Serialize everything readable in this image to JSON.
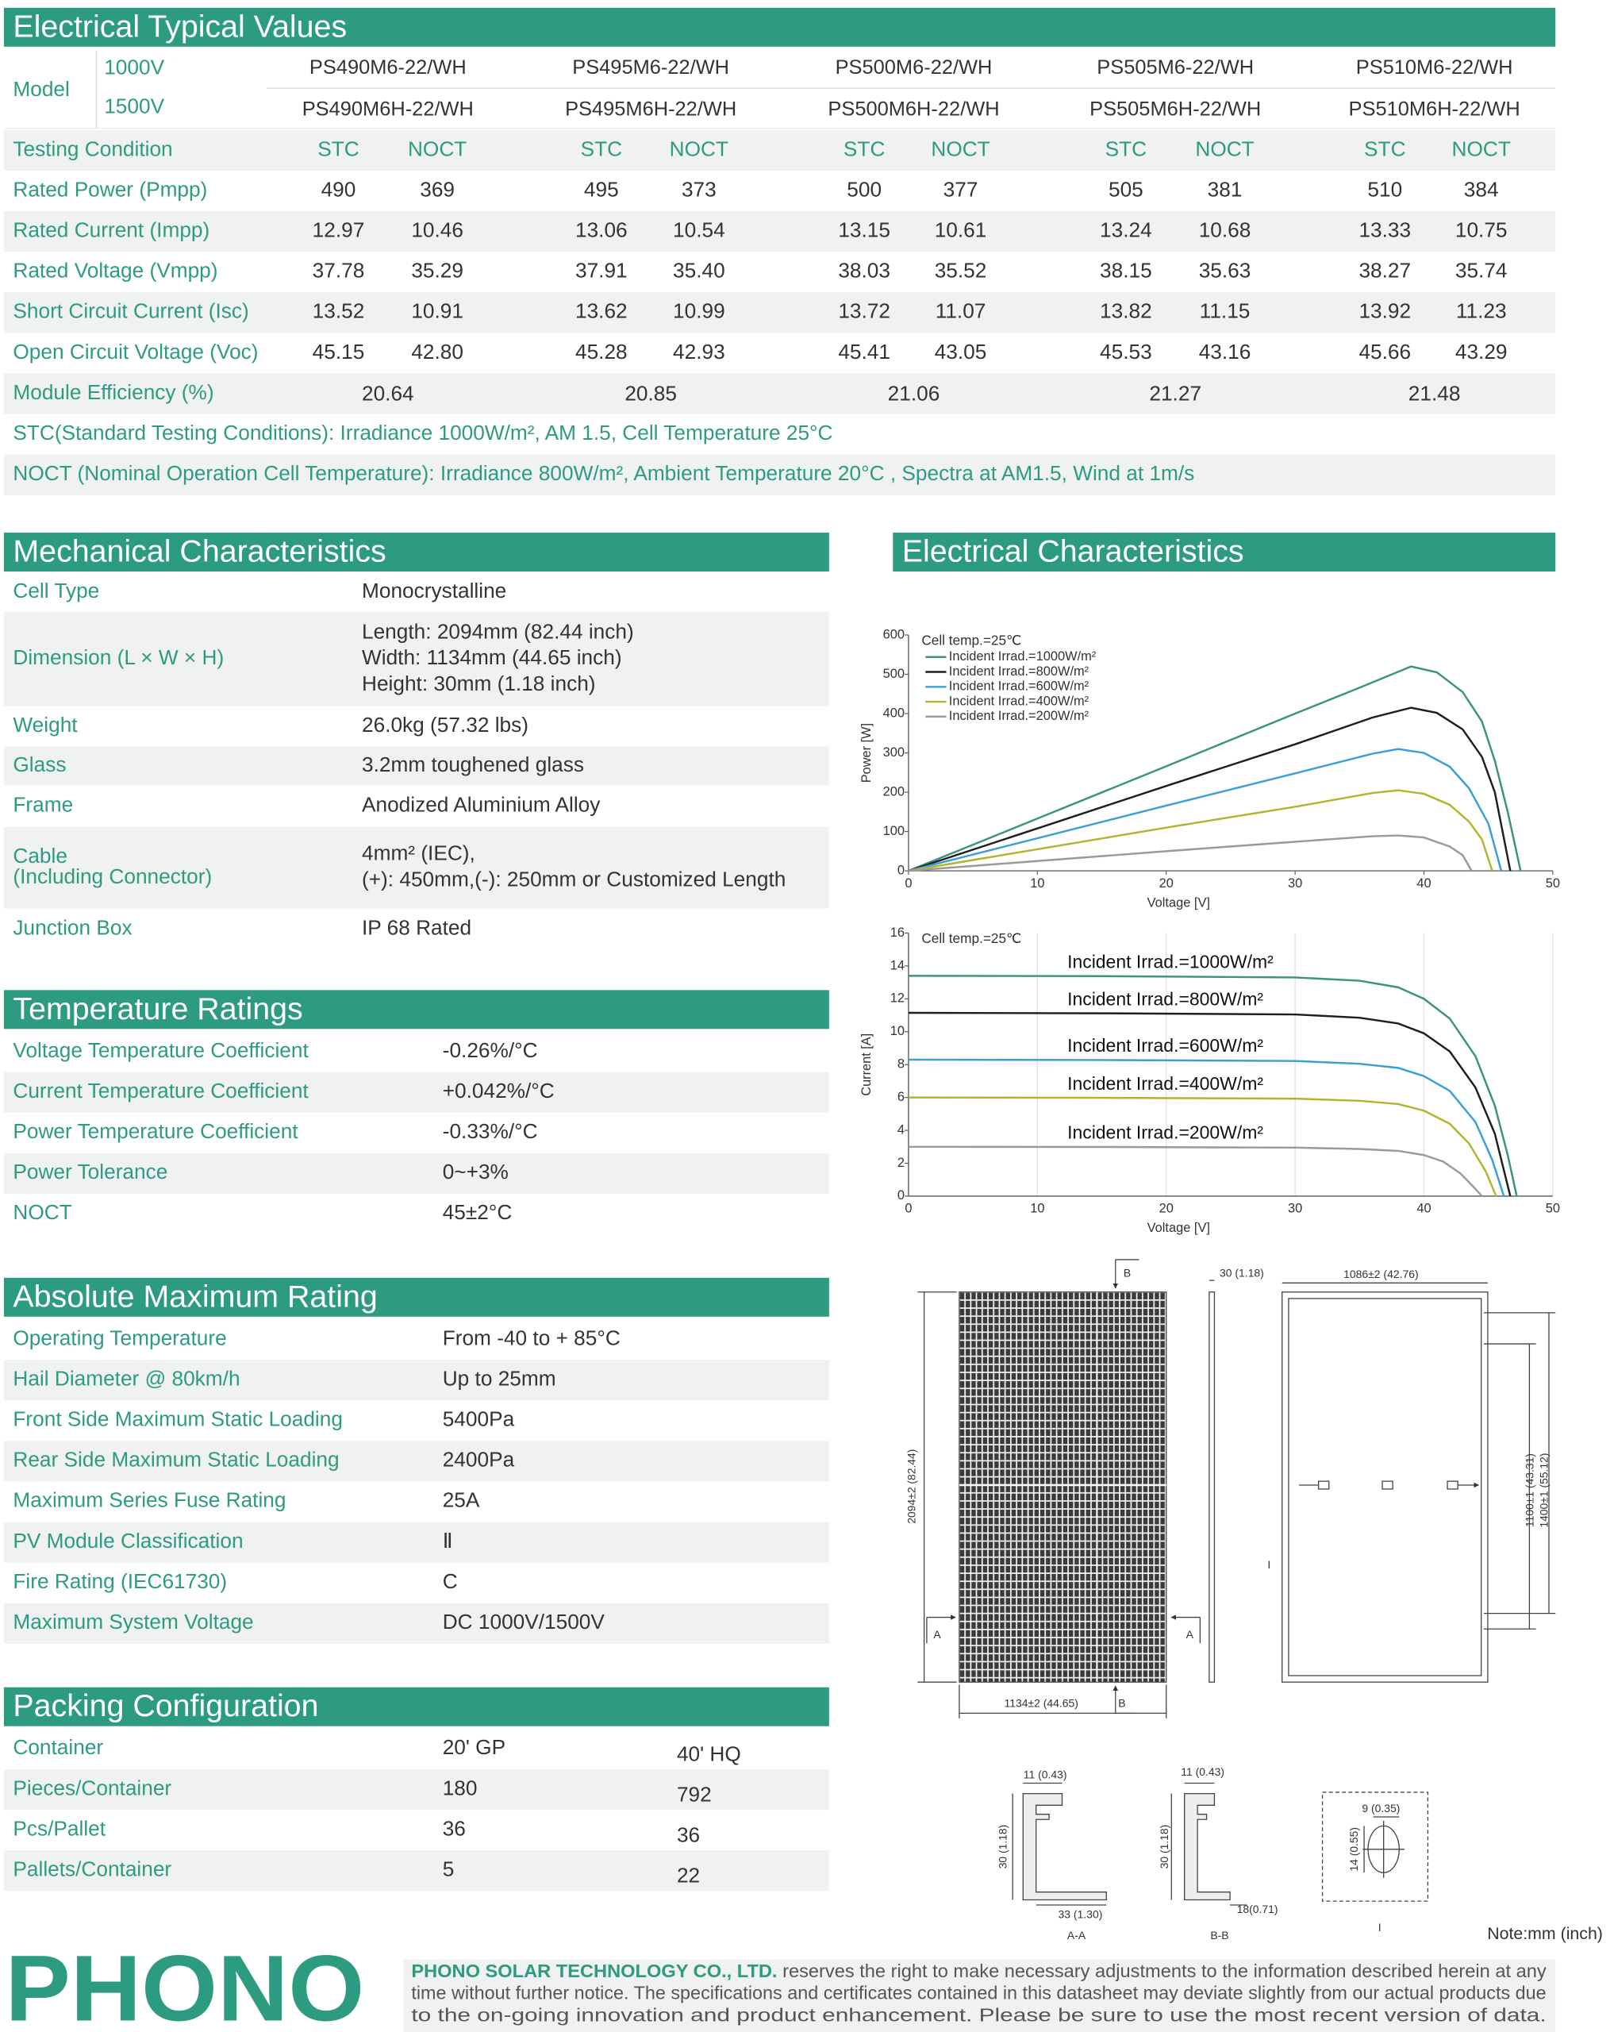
{
  "electrical_values": {
    "title": "Electrical Typical Values",
    "model_label": "Model",
    "voltages": [
      "1000V",
      "1500V"
    ],
    "models": [
      [
        "PS490M6-22/WH",
        "PS495M6-22/WH",
        "PS500M6-22/WH",
        "PS505M6-22/WH",
        "PS510M6-22/WH"
      ],
      [
        "PS490M6H-22/WH",
        "PS495M6H-22/WH",
        "PS500M6H-22/WH",
        "PS505M6H-22/WH",
        "PS510M6H-22/WH"
      ]
    ],
    "rows": [
      {
        "label": "Testing Condition",
        "cells": [
          "STC",
          "NOCT",
          "STC",
          "NOCT",
          "STC",
          "NOCT",
          "STC",
          "NOCT",
          "STC",
          "NOCT"
        ]
      },
      {
        "label": "Rated Power (Pmpp)",
        "cells": [
          "490",
          "369",
          "495",
          "373",
          "500",
          "377",
          "505",
          "381",
          "510",
          "384"
        ]
      },
      {
        "label": "Rated Current (Impp)",
        "cells": [
          "12.97",
          "10.46",
          "13.06",
          "10.54",
          "13.15",
          "10.61",
          "13.24",
          "10.68",
          "13.33",
          "10.75"
        ]
      },
      {
        "label": "Rated Voltage (Vmpp)",
        "cells": [
          "37.78",
          "35.29",
          "37.91",
          "35.40",
          "38.03",
          "35.52",
          "38.15",
          "35.63",
          "38.27",
          "35.74"
        ]
      },
      {
        "label": "Short Circuit Current (Isc)",
        "cells": [
          "13.52",
          "10.91",
          "13.62",
          "10.99",
          "13.72",
          "11.07",
          "13.82",
          "11.15",
          "13.92",
          "11.23"
        ]
      },
      {
        "label": "Open Circuit Voltage (Voc)",
        "cells": [
          "45.15",
          "42.80",
          "45.28",
          "42.93",
          "45.41",
          "43.05",
          "45.53",
          "43.16",
          "45.66",
          "43.29"
        ]
      }
    ],
    "efficiency": {
      "label": "Module Efficiency (%)",
      "cells": [
        "20.64",
        "20.85",
        "21.06",
        "21.27",
        "21.48"
      ]
    },
    "notes": [
      "STC(Standard Testing Conditions): Irradiance 1000W/m², AM 1.5, Cell Temperature 25°C",
      "NOCT (Nominal Operation Cell Temperature): Irradiance 800W/m², Ambient Temperature 20°C , Spectra at AM1.5, Wind at 1m/s"
    ]
  },
  "mechanical": {
    "title": "Mechanical Characteristics",
    "rows": [
      {
        "label": [
          "Cell Type"
        ],
        "value": [
          "Monocrystalline"
        ]
      },
      {
        "label": [
          "Dimension (L × W × H)"
        ],
        "value": [
          "Length: 2094mm (82.44 inch)",
          "Width: 1134mm (44.65 inch)",
          "Height: 30mm (1.18 inch)"
        ]
      },
      {
        "label": [
          "Weight"
        ],
        "value": [
          "26.0kg (57.32 lbs)"
        ]
      },
      {
        "label": [
          "Glass"
        ],
        "value": [
          "3.2mm toughened glass"
        ]
      },
      {
        "label": [
          "Frame"
        ],
        "value": [
          "Anodized Aluminium Alloy"
        ]
      },
      {
        "label": [
          "Cable",
          "(Including Connector)"
        ],
        "value": [
          "4mm² (IEC),",
          "(+): 450mm,(-): 250mm or Customized Length"
        ]
      },
      {
        "label": [
          "Junction Box"
        ],
        "value": [
          "IP 68 Rated"
        ]
      }
    ]
  },
  "temperature": {
    "title": "Temperature Ratings",
    "rows": [
      {
        "label": "Voltage Temperature Coefficient",
        "value": "-0.26%/°C"
      },
      {
        "label": "Current Temperature Coefficient",
        "value": "+0.042%/°C"
      },
      {
        "label": "Power Temperature Coefficient",
        "value": "-0.33%/°C"
      },
      {
        "label": "Power Tolerance",
        "value": "0~+3%"
      },
      {
        "label": "NOCT",
        "value": "45±2°C"
      }
    ]
  },
  "absolute_max": {
    "title": "Absolute Maximum Rating",
    "rows": [
      {
        "label": "Operating Temperature",
        "value": "From -40 to + 85°C"
      },
      {
        "label": "Hail Diameter @ 80km/h",
        "value": "Up to 25mm"
      },
      {
        "label": "Front Side Maximum Static Loading",
        "value": "5400Pa"
      },
      {
        "label": "Rear Side Maximum Static Loading",
        "value": "2400Pa"
      },
      {
        "label": "Maximum Series Fuse Rating",
        "value": "25A"
      },
      {
        "label": "PV Module Classification",
        "value": "Ⅱ"
      },
      {
        "label": "Fire Rating (IEC61730)",
        "value": "C"
      },
      {
        "label": "Maximum System Voltage",
        "value": "DC 1000V/1500V"
      }
    ]
  },
  "packing": {
    "title": "Packing Configuration",
    "rows": [
      {
        "label": "Container",
        "values": [
          "20' GP",
          "40' HQ"
        ]
      },
      {
        "label": "Pieces/Container",
        "values": [
          "180",
          "792"
        ]
      },
      {
        "label": "Pcs/Pallet",
        "values": [
          "36",
          "36"
        ]
      },
      {
        "label": "Pallets/Container",
        "values": [
          "5",
          "22"
        ]
      }
    ]
  },
  "electrical_characteristics": {
    "title": "Electrical Characteristics"
  },
  "chart_data": [
    {
      "type": "line",
      "annotation": "Cell temp.=25℃",
      "xlabel": "Voltage [V]",
      "ylabel": "Power [W]",
      "xlim": [
        0,
        50
      ],
      "ylim": [
        0,
        600
      ],
      "xticks": [
        0,
        10,
        20,
        30,
        40,
        50
      ],
      "yticks": [
        0,
        100,
        200,
        300,
        400,
        500,
        600
      ],
      "grid": false,
      "legend": "upper-left",
      "series": [
        {
          "name": "Incident Irrad.=1000W/m²",
          "color": "#3a9479",
          "x": [
            0,
            10,
            20,
            30,
            35,
            39,
            41,
            43,
            44.5,
            45.5,
            46.5,
            47.5
          ],
          "values": [
            0,
            133,
            266,
            400,
            466,
            520,
            505,
            455,
            380,
            280,
            150,
            0
          ]
        },
        {
          "name": "Incident Irrad.=800W/m²",
          "color": "#1e1e1e",
          "x": [
            0,
            10,
            20,
            30,
            36,
            39,
            41,
            43,
            44.5,
            45.5,
            46.7
          ],
          "values": [
            0,
            108,
            216,
            322,
            390,
            415,
            402,
            360,
            290,
            200,
            0
          ]
        },
        {
          "name": "Incident Irrad.=600W/m²",
          "color": "#3a9fd6",
          "x": [
            0,
            10,
            20,
            30,
            36,
            38,
            40,
            42,
            43.5,
            45,
            46
          ],
          "values": [
            0,
            83,
            166,
            248,
            298,
            310,
            300,
            265,
            210,
            120,
            0
          ]
        },
        {
          "name": "Incident Irrad.=400W/m²",
          "color": "#b2b42c",
          "x": [
            0,
            10,
            20,
            30,
            36,
            38,
            40,
            42,
            43.5,
            44.5,
            45.3
          ],
          "values": [
            0,
            55,
            110,
            163,
            198,
            205,
            196,
            168,
            125,
            80,
            0
          ]
        },
        {
          "name": "Incident Irrad.=200W/m²",
          "color": "#9a9a9a",
          "x": [
            0,
            10,
            20,
            30,
            36,
            38,
            40,
            42,
            43,
            43.7
          ],
          "values": [
            0,
            25,
            50,
            74,
            88,
            90,
            85,
            62,
            40,
            0
          ]
        }
      ]
    },
    {
      "type": "line",
      "annotation": "Cell temp.=25℃",
      "xlabel": "Voltage [V]",
      "ylabel": "Current [A]",
      "xlim": [
        0,
        50
      ],
      "ylim": [
        0,
        16
      ],
      "xticks": [
        0,
        10,
        20,
        30,
        40,
        50
      ],
      "yticks": [
        0,
        2,
        4,
        6,
        8,
        10,
        12,
        14,
        16
      ],
      "grid": "x",
      "legend": "inline",
      "series": [
        {
          "name": "Incident Irrad.=1000W/m²",
          "color": "#3a9479",
          "x": [
            0,
            15,
            30,
            35,
            38,
            40,
            42,
            44,
            45.5,
            46.5,
            47.2
          ],
          "values": [
            13.4,
            13.38,
            13.3,
            13.1,
            12.7,
            12.0,
            10.8,
            8.5,
            5.5,
            2.5,
            0
          ]
        },
        {
          "name": "Incident Irrad.=800W/m²",
          "color": "#1e1e1e",
          "x": [
            0,
            15,
            30,
            35,
            38,
            40,
            42,
            44,
            45.5,
            46.7
          ],
          "values": [
            11.15,
            11.12,
            11.05,
            10.85,
            10.5,
            9.9,
            8.8,
            6.6,
            3.8,
            0
          ]
        },
        {
          "name": "Incident Irrad.=600W/m²",
          "color": "#3a9fd6",
          "x": [
            0,
            15,
            30,
            35,
            38,
            40,
            42,
            44,
            45.3,
            46.2
          ],
          "values": [
            8.3,
            8.28,
            8.22,
            8.05,
            7.8,
            7.3,
            6.4,
            4.5,
            2.2,
            0
          ]
        },
        {
          "name": "Incident Irrad.=400W/m²",
          "color": "#b2b42c",
          "x": [
            0,
            15,
            30,
            35,
            38,
            40,
            42,
            43.5,
            44.8,
            45.6
          ],
          "values": [
            6.0,
            5.98,
            5.93,
            5.8,
            5.6,
            5.2,
            4.4,
            3.2,
            1.5,
            0
          ]
        },
        {
          "name": "Incident Irrad.=200W/m²",
          "color": "#9a9a9a",
          "x": [
            0,
            15,
            30,
            35,
            38,
            40,
            41.5,
            42.8,
            43.8,
            44.5
          ],
          "values": [
            3.0,
            2.99,
            2.95,
            2.87,
            2.75,
            2.5,
            2.1,
            1.4,
            0.6,
            0
          ]
        }
      ]
    }
  ],
  "drawing": {
    "labels": [
      "B",
      "30 (1.18)",
      "1086±2 (42.76)",
      "2094±2 (82.44)",
      "1100±1 (43.31)",
      "1400±1 (55.12)",
      "A",
      "A",
      "1134±2 (44.65)",
      "B",
      "I",
      "11 (0.43)",
      "30 (1.18)",
      "33 (1.30)",
      "A-A",
      "11 (0.43)",
      "30 (1.18)",
      "18(0.71)",
      "B-B",
      "9 (0.35)",
      "14 (0.55)",
      "I",
      "Note:mm (inch)"
    ]
  },
  "footer": {
    "logo": "PHONO",
    "company": "PHONO SOLAR TECHNOLOGY CO., LTD.",
    "lines": [
      " reserves the right to make necessary adjustments to the information described herein at any",
      "time without further notice. The specifications and certificates contained in this datasheet may deviate slightly from our actual products due",
      "to the on-going innovation and product enhancement. Please be sure to use the most recent version of data."
    ]
  }
}
